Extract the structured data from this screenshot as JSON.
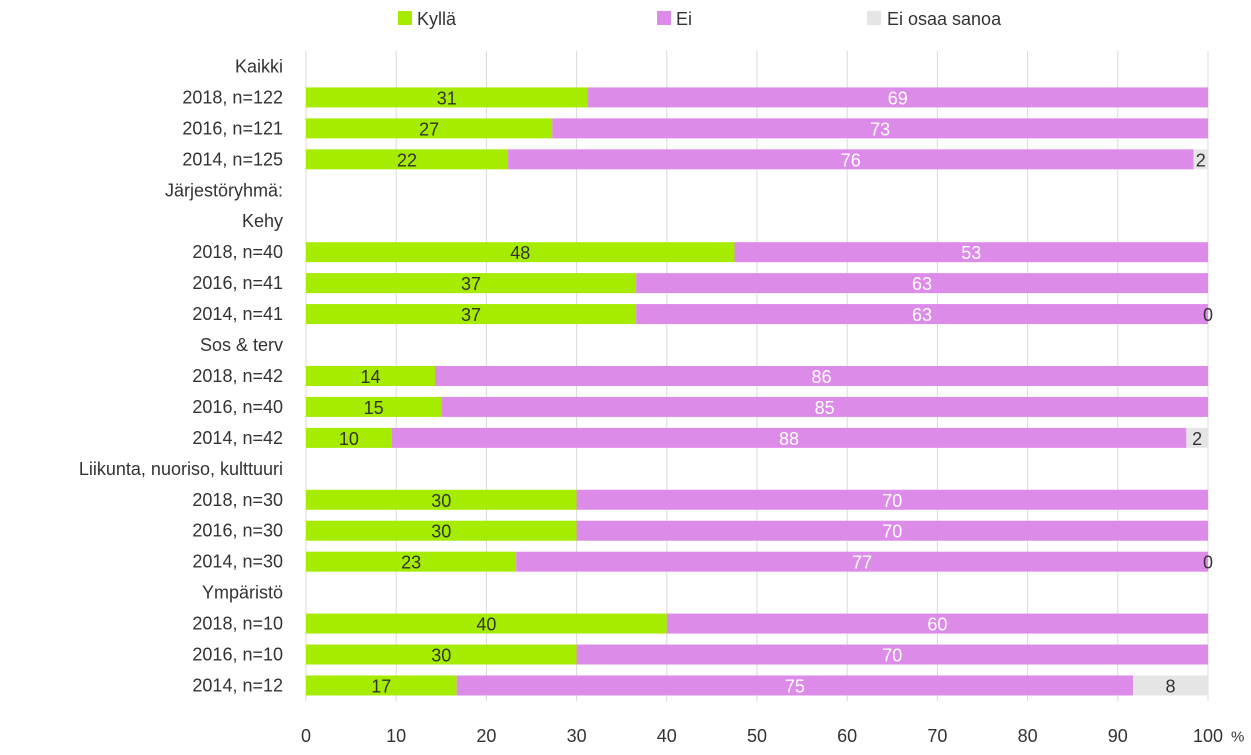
{
  "chart_data": {
    "type": "bar",
    "orientation": "horizontal",
    "stacked": true,
    "title": "",
    "xlabel": "",
    "ylabel": "",
    "unit": "%",
    "xlim": [
      0,
      100
    ],
    "xticks": [
      0,
      10,
      20,
      30,
      40,
      50,
      60,
      70,
      80,
      90,
      100
    ],
    "grid": true,
    "legend_position": "top",
    "legend": [
      {
        "name": "Kyllä",
        "color": "#a6ec00"
      },
      {
        "name": "Ei",
        "color": "#dd8be8"
      },
      {
        "name": "Ei osaa sanoa",
        "color": "#e5e5e5"
      }
    ],
    "categories": [
      "Kaikki",
      "2018, n=122",
      "2016, n=121",
      "2014, n=125",
      "Järjestöryhmä:",
      "Kehy",
      "2018, n=40",
      "2016, n=41",
      "2014, n=41",
      "Sos & terv",
      "2018, n=42",
      "2016, n=40",
      "2014, n=42",
      "Liikunta, nuoriso, kulttuuri",
      "2018, n=30",
      "2016, n=30",
      "2014, n=30",
      "Ympäristö",
      "2018, n=10",
      "2016, n=10",
      "2014, n=12"
    ],
    "series": [
      {
        "name": "Kyllä",
        "values": [
          null,
          31,
          27,
          22,
          null,
          null,
          48,
          37,
          37,
          null,
          14,
          15,
          10,
          null,
          30,
          30,
          23,
          null,
          40,
          30,
          17
        ],
        "labels": [
          null,
          "31",
          "27",
          "22",
          null,
          null,
          "48",
          "37",
          "37",
          null,
          "14",
          "15",
          "10",
          null,
          "30",
          "30",
          "23",
          null,
          "40",
          "30",
          "17"
        ]
      },
      {
        "name": "Ei",
        "values": [
          null,
          69,
          73,
          76,
          null,
          null,
          53,
          63,
          63,
          null,
          86,
          85,
          88,
          null,
          70,
          70,
          77,
          null,
          60,
          70,
          75
        ],
        "labels": [
          null,
          "69",
          "73",
          "76",
          null,
          null,
          "53",
          "63",
          "63",
          null,
          "86",
          "85",
          "88",
          null,
          "70",
          "70",
          "77",
          null,
          "60",
          "70",
          "75"
        ]
      },
      {
        "name": "Ei osaa sanoa",
        "values": [
          null,
          null,
          null,
          2,
          null,
          null,
          null,
          null,
          0,
          null,
          null,
          null,
          2,
          null,
          null,
          null,
          0,
          null,
          null,
          null,
          8
        ],
        "labels": [
          null,
          null,
          null,
          "2",
          null,
          null,
          null,
          null,
          "0",
          null,
          null,
          null,
          "2",
          null,
          null,
          null,
          "0",
          null,
          null,
          null,
          "8"
        ]
      }
    ],
    "render_values": [
      [
        null,
        null,
        null
      ],
      [
        31.2,
        68.8,
        null
      ],
      [
        27.3,
        72.7,
        null
      ],
      [
        22.4,
        76.0,
        1.6
      ],
      [
        null,
        null,
        null
      ],
      [
        null,
        null,
        null
      ],
      [
        47.5,
        52.5,
        null
      ],
      [
        36.6,
        63.4,
        null
      ],
      [
        36.6,
        63.4,
        0
      ],
      [
        null,
        null,
        null
      ],
      [
        14.3,
        85.7,
        null
      ],
      [
        15.0,
        85.0,
        null
      ],
      [
        9.5,
        88.1,
        2.4
      ],
      [
        null,
        null,
        null
      ],
      [
        30.0,
        70.0,
        null
      ],
      [
        30.0,
        70.0,
        null
      ],
      [
        23.3,
        76.7,
        0
      ],
      [
        null,
        null,
        null
      ],
      [
        40.0,
        60.0,
        null
      ],
      [
        30.0,
        70.0,
        null
      ],
      [
        16.7,
        75.0,
        8.3
      ]
    ]
  }
}
